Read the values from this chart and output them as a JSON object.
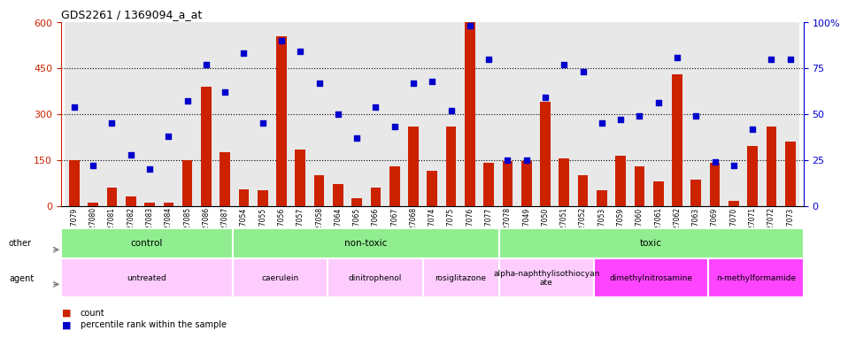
{
  "title": "GDS2261 / 1369094_a_at",
  "samples": [
    "GSM127079",
    "GSM127080",
    "GSM127081",
    "GSM127082",
    "GSM127083",
    "GSM127084",
    "GSM127085",
    "GSM127086",
    "GSM127087",
    "GSM127054",
    "GSM127055",
    "GSM127056",
    "GSM127057",
    "GSM127058",
    "GSM127064",
    "GSM127065",
    "GSM127066",
    "GSM127067",
    "GSM127068",
    "GSM127074",
    "GSM127075",
    "GSM127076",
    "GSM127077",
    "GSM127078",
    "GSM127049",
    "GSM127050",
    "GSM127051",
    "GSM127052",
    "GSM127053",
    "GSM127059",
    "GSM127060",
    "GSM127061",
    "GSM127062",
    "GSM127063",
    "GSM127069",
    "GSM127070",
    "GSM127071",
    "GSM127072",
    "GSM127073"
  ],
  "counts": [
    150,
    10,
    60,
    30,
    10,
    10,
    150,
    390,
    175,
    55,
    50,
    555,
    185,
    100,
    70,
    25,
    60,
    130,
    260,
    115,
    260,
    600,
    140,
    145,
    145,
    340,
    155,
    100,
    50,
    165,
    130,
    80,
    430,
    85,
    140,
    15,
    195,
    260,
    210
  ],
  "percentiles": [
    54,
    22,
    45,
    28,
    20,
    38,
    57,
    77,
    62,
    83,
    45,
    90,
    84,
    67,
    50,
    37,
    54,
    43,
    67,
    68,
    52,
    98,
    80,
    25,
    25,
    59,
    77,
    73,
    45,
    47,
    49,
    56,
    81,
    49,
    24,
    22,
    42,
    80,
    80
  ],
  "other_groups": [
    {
      "label": "control",
      "start": 0,
      "end": 9,
      "color": "#90ee90"
    },
    {
      "label": "non-toxic",
      "start": 9,
      "end": 23,
      "color": "#90ee90"
    },
    {
      "label": "toxic",
      "start": 23,
      "end": 39,
      "color": "#90ee90"
    }
  ],
  "agent_groups": [
    {
      "label": "untreated",
      "start": 0,
      "end": 9,
      "color": "#ffccff"
    },
    {
      "label": "caerulein",
      "start": 9,
      "end": 14,
      "color": "#ffccff"
    },
    {
      "label": "dinitrophenol",
      "start": 14,
      "end": 19,
      "color": "#ffccff"
    },
    {
      "label": "rosiglitazone",
      "start": 19,
      "end": 23,
      "color": "#ffccff"
    },
    {
      "label": "alpha-naphthylisothiocyan\nate",
      "start": 23,
      "end": 28,
      "color": "#ffccff"
    },
    {
      "label": "dimethylnitrosamine",
      "start": 28,
      "end": 34,
      "color": "#ff44ff"
    },
    {
      "label": "n-methylformamide",
      "start": 34,
      "end": 39,
      "color": "#ff44ff"
    }
  ],
  "bar_color": "#cc2200",
  "dot_color": "#0000cc",
  "ylim_left": [
    0,
    600
  ],
  "ylim_right": [
    0,
    100
  ],
  "yticks_left": [
    0,
    150,
    300,
    450,
    600
  ],
  "yticks_right": [
    0,
    25,
    50,
    75,
    100
  ],
  "hlines": [
    150,
    300,
    450
  ],
  "bg_color": "#e8e8e8"
}
